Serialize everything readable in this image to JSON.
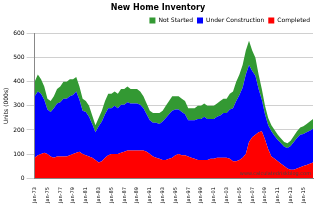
{
  "chart_data": {
    "type": "area",
    "title": "New Home Inventory",
    "y_label": "Units (000s)",
    "categories": [
      "Jan-73",
      null,
      null,
      null,
      "Jan-75",
      null,
      null,
      null,
      "Jan-77",
      null,
      null,
      null,
      "Jan-79",
      null,
      null,
      null,
      "Jan-81",
      null,
      null,
      null,
      "Jan-83",
      null,
      null,
      null,
      "Jan-85",
      null,
      null,
      null,
      "Jan-87",
      null,
      null,
      null,
      "Jan-89",
      null,
      null,
      null,
      "Jan-91",
      null,
      null,
      null,
      "Jan-93",
      null,
      null,
      null,
      "Jan-95",
      null,
      null,
      null,
      "Jan-97",
      null,
      null,
      null,
      "Jan-99",
      null,
      null,
      null,
      "Jan-01",
      null,
      null,
      null,
      "Jan-03",
      null,
      null,
      null,
      "Jan-05",
      null,
      null,
      null,
      "Jan-07",
      null,
      null,
      null,
      "Jan-09",
      null,
      null,
      null,
      "Jan-11",
      null,
      null,
      null,
      "Jan-13",
      null,
      null,
      null,
      "Jan-15",
      null,
      null,
      null
    ],
    "series": [
      {
        "name": "Completed",
        "color": "#ff0000",
        "values": [
          85,
          95,
          100,
          105,
          100,
          90,
          85,
          90,
          90,
          90,
          90,
          95,
          100,
          105,
          110,
          100,
          95,
          90,
          85,
          75,
          65,
          70,
          85,
          95,
          100,
          100,
          100,
          105,
          110,
          115,
          115,
          115,
          115,
          115,
          115,
          110,
          100,
          90,
          85,
          80,
          75,
          75,
          80,
          85,
          95,
          100,
          95,
          95,
          90,
          85,
          80,
          75,
          75,
          75,
          75,
          80,
          80,
          85,
          85,
          85,
          85,
          80,
          70,
          70,
          75,
          85,
          100,
          150,
          170,
          180,
          190,
          195,
          160,
          120,
          90,
          80,
          70,
          60,
          50,
          40,
          35,
          35,
          40,
          45,
          50,
          55,
          60,
          65
        ]
      },
      {
        "name": "Under Construction",
        "color": "#0000ff",
        "values": [
          255,
          265,
          250,
          220,
          185,
          185,
          205,
          220,
          225,
          240,
          240,
          245,
          245,
          255,
          215,
          180,
          180,
          165,
          140,
          115,
          150,
          165,
          180,
          195,
          190,
          200,
          190,
          200,
          195,
          200,
          195,
          195,
          195,
          190,
          175,
          155,
          140,
          140,
          145,
          145,
          160,
          175,
          185,
          195,
          190,
          185,
          180,
          170,
          150,
          155,
          160,
          170,
          170,
          180,
          170,
          165,
          165,
          170,
          175,
          185,
          185,
          205,
          220,
          250,
          270,
          290,
          330,
          320,
          275,
          245,
          180,
          130,
          105,
          100,
          105,
          95,
          88,
          85,
          80,
          85,
          98,
          115,
          127,
          135,
          133,
          135,
          137,
          140
        ]
      },
      {
        "name": "Not Started",
        "color": "#339933",
        "values": [
          60,
          70,
          60,
          55,
          45,
          45,
          50,
          60,
          65,
          70,
          70,
          70,
          65,
          60,
          55,
          50,
          45,
          45,
          35,
          30,
          35,
          45,
          55,
          60,
          60,
          60,
          60,
          65,
          65,
          65,
          60,
          60,
          60,
          55,
          50,
          45,
          40,
          40,
          40,
          45,
          45,
          50,
          55,
          60,
          55,
          55,
          55,
          55,
          50,
          50,
          50,
          55,
          55,
          55,
          55,
          55,
          55,
          55,
          60,
          60,
          60,
          65,
          70,
          80,
          85,
          95,
          100,
          100,
          85,
          75,
          60,
          45,
          35,
          30,
          25,
          25,
          22,
          20,
          20,
          20,
          22,
          25,
          28,
          30,
          32,
          35,
          38,
          40
        ]
      }
    ],
    "ylim": [
      0,
      600
    ],
    "yticks": [
      0,
      100,
      200,
      300,
      400,
      500,
      600
    ],
    "stacked": true,
    "grid": true,
    "legend": "top-right",
    "annotations": [
      "www.calculatedriskblog.com"
    ]
  }
}
